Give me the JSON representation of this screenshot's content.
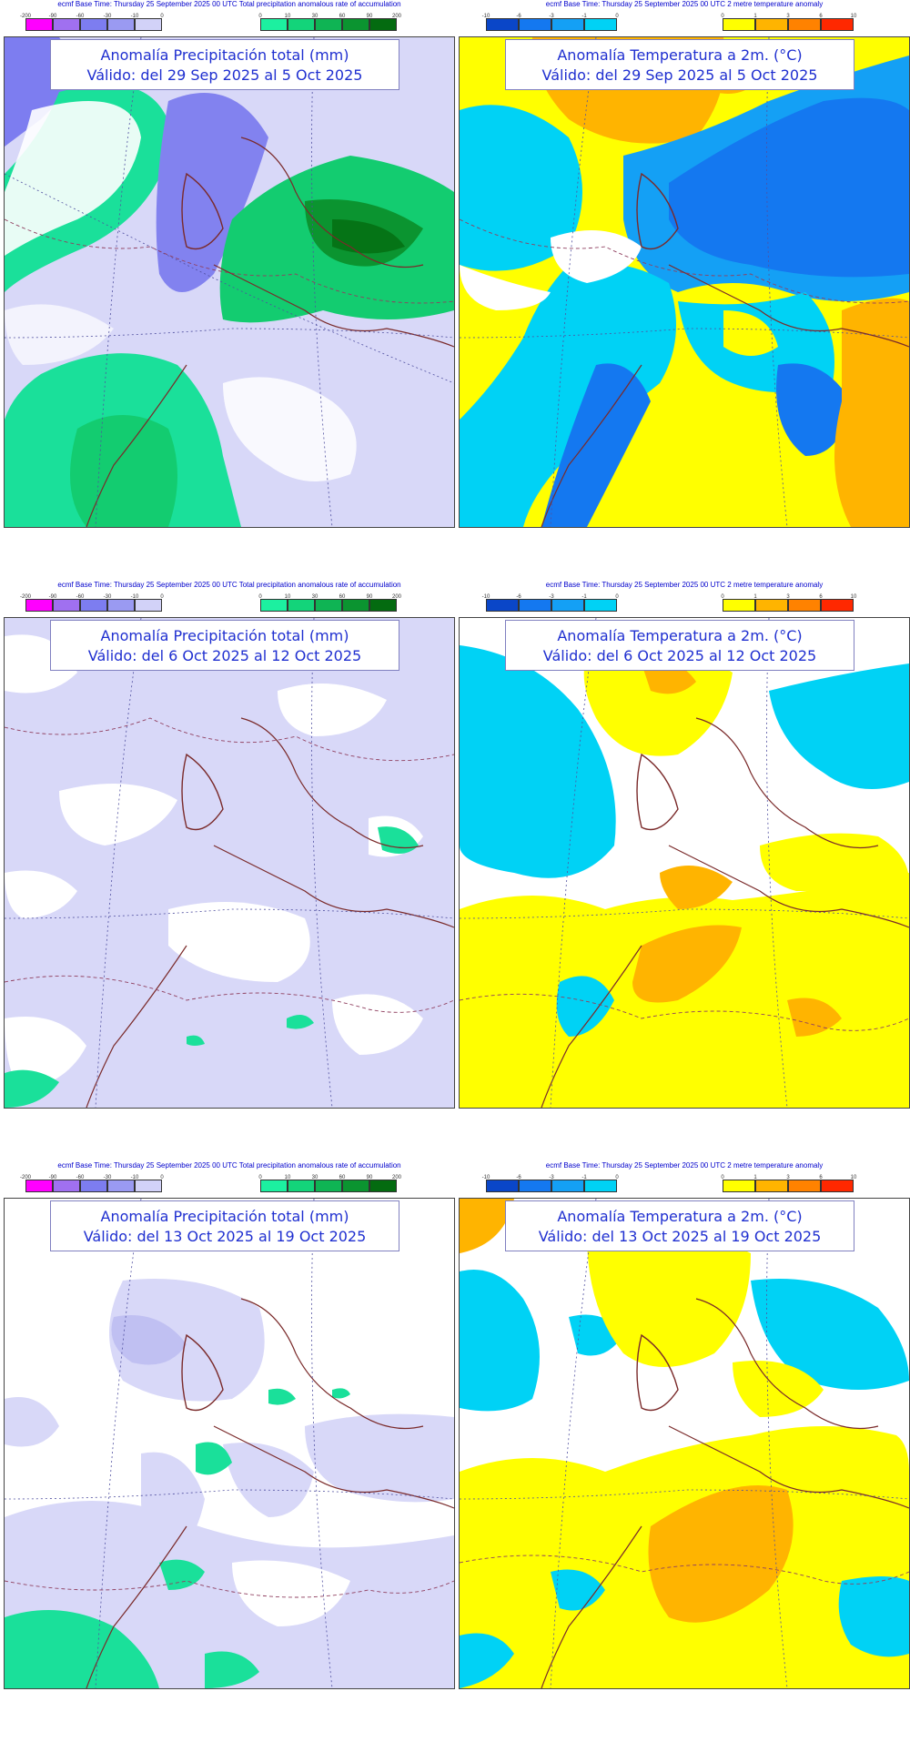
{
  "headers": {
    "precip": "ecmf Base Time: Thursday 25 September 2025 00 UTC Total precipitation anomalous rate of accumulation",
    "temp": "ecmf Base Time: Thursday 25 September 2025 00 UTC 2 metre temperature anomaly"
  },
  "legends": {
    "precip_neg": {
      "ticks": [
        "-200",
        "-90",
        "-60",
        "-30",
        "-10",
        "0"
      ],
      "colors": [
        "#ff00ff",
        "#a070f0",
        "#7d7df0",
        "#9a9af2",
        "#d2d2f8"
      ]
    },
    "precip_pos": {
      "ticks": [
        "0",
        "10",
        "30",
        "60",
        "90",
        "200"
      ],
      "colors": [
        "#1cf0a0",
        "#13d47a",
        "#0fb454",
        "#0b9430",
        "#046b10"
      ]
    },
    "temp_neg": {
      "ticks": [
        "-10",
        "-6",
        "-3",
        "-1",
        "0"
      ],
      "colors": [
        "#0a46c8",
        "#1478f0",
        "#14a0f5",
        "#00d2f5"
      ]
    },
    "temp_pos": {
      "ticks": [
        "0",
        "1",
        "3",
        "6",
        "10"
      ],
      "colors": [
        "#ffff00",
        "#ffb400",
        "#ff8200",
        "#ff2800"
      ]
    }
  },
  "panels": [
    {
      "type": "precip",
      "title": "Anomalía Precipitación total (mm)",
      "subtitle": "Válido: del 29 Sep 2025 al 5 Oct 2025"
    },
    {
      "type": "temp",
      "title": "Anomalía Temperatura a 2m. (°C)",
      "subtitle": "Válido: del 29 Sep 2025 al 5 Oct 2025"
    },
    {
      "type": "precip",
      "title": "Anomalía Precipitación total (mm)",
      "subtitle": "Válido: del 6 Oct 2025 al 12 Oct 2025"
    },
    {
      "type": "temp",
      "title": "Anomalía Temperatura a 2m. (°C)",
      "subtitle": "Válido: del 6 Oct 2025 al 12 Oct 2025"
    },
    {
      "type": "precip",
      "title": "Anomalía Precipitación total (mm)",
      "subtitle": "Válido: del 13 Oct 2025 al 19 Oct 2025"
    },
    {
      "type": "temp",
      "title": "Anomalía Temperatura a 2m. (°C)",
      "subtitle": "Válido: del 13 Oct 2025 al 19 Oct 2025"
    }
  ]
}
